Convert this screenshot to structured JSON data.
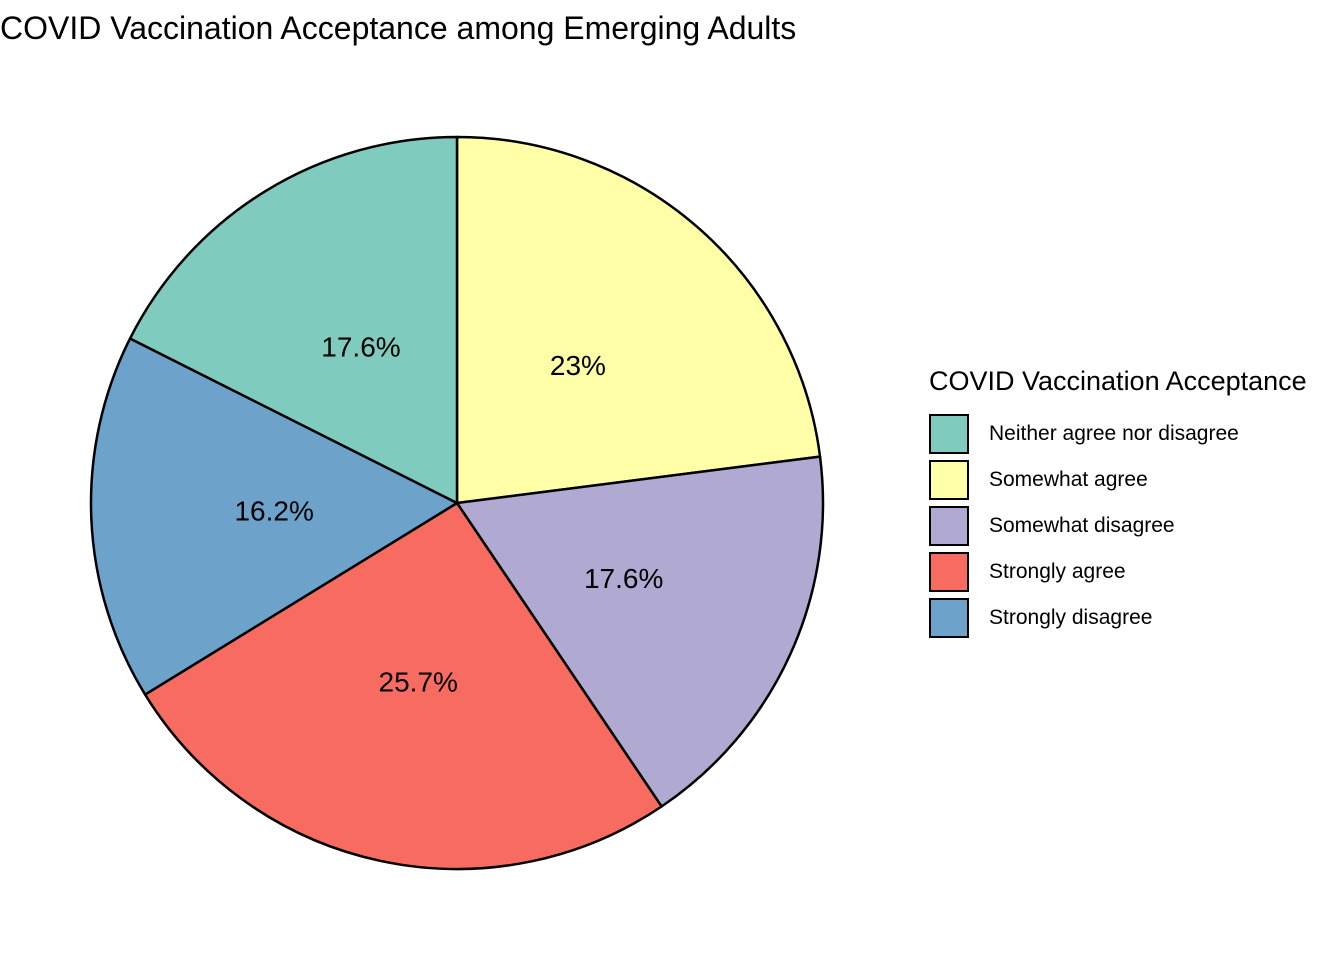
{
  "chart_data": {
    "type": "pie",
    "title": "COVID Vaccination Acceptance among Emerging Adults",
    "legend_title": "COVID Vaccination Acceptance",
    "legend_position": "right",
    "slice_order": "clockwise from top, ending with first legend entry",
    "slices": [
      {
        "name": "Neither agree nor disagree",
        "value": 17.6,
        "label": "17.6%",
        "color": "#7FCBBD"
      },
      {
        "name": "Somewhat agree",
        "value": 23.0,
        "label": "23%",
        "color": "#FFFFA7"
      },
      {
        "name": "Somewhat disagree",
        "value": 17.6,
        "label": "17.6%",
        "color": "#B0A9D1"
      },
      {
        "name": "Strongly agree",
        "value": 25.7,
        "label": "25.7%",
        "color": "#F76B61"
      },
      {
        "name": "Strongly disagree",
        "value": 16.2,
        "label": "16.2%",
        "color": "#6DA2CA"
      }
    ]
  }
}
